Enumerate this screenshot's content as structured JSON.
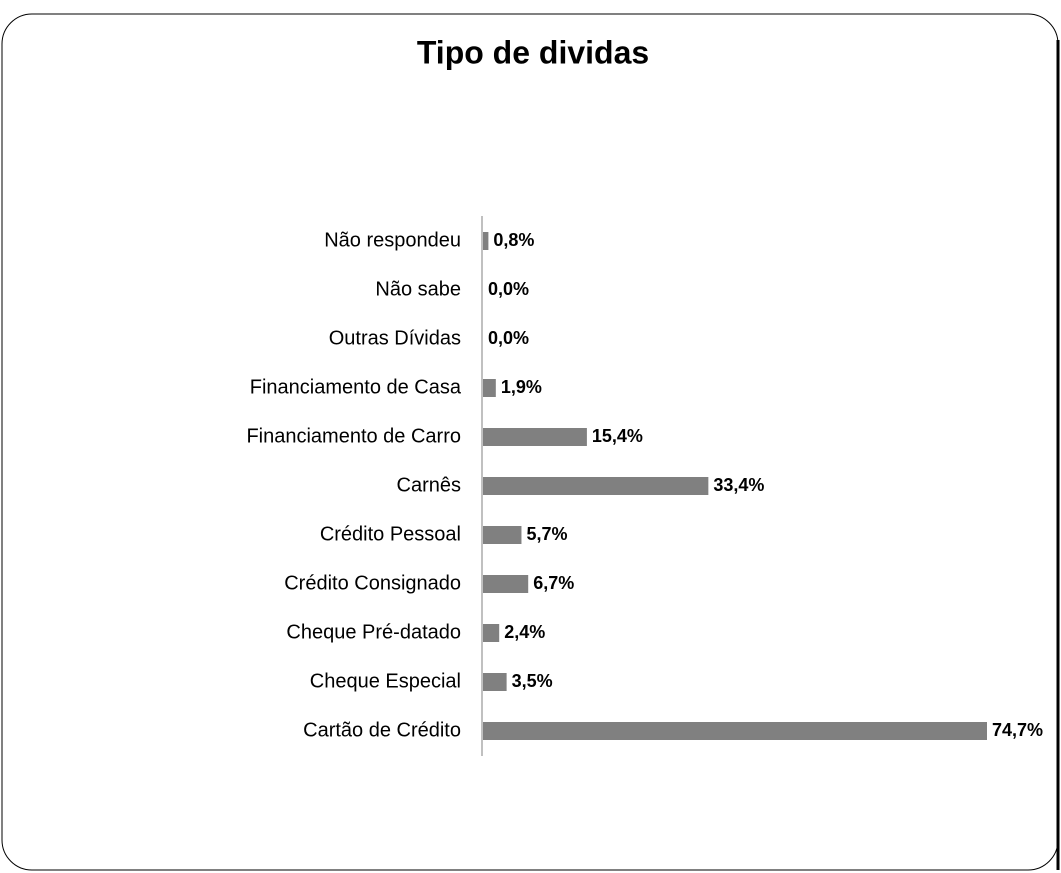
{
  "chart_data": {
    "type": "hbar",
    "title": "Tipo de dividas",
    "categories": [
      "Não respondeu",
      "Não sabe",
      "Outras Dívidas",
      "Financiamento de Casa",
      "Financiamento de Carro",
      "Carnês",
      "Crédito Pessoal",
      "Crédito Consignado",
      "Cheque Pré-datado",
      "Cheque Especial",
      "Cartão de Crédito"
    ],
    "values": [
      0.8,
      0.0,
      0.0,
      1.9,
      15.4,
      33.4,
      5.7,
      6.7,
      2.4,
      3.5,
      74.7
    ],
    "value_labels": [
      "0,8%",
      "0,0%",
      "0,0%",
      "1,9%",
      "15,4%",
      "33,4%",
      "5,7%",
      "6,7%",
      "2,4%",
      "3,5%",
      "74,7%"
    ],
    "color": "#808080"
  }
}
